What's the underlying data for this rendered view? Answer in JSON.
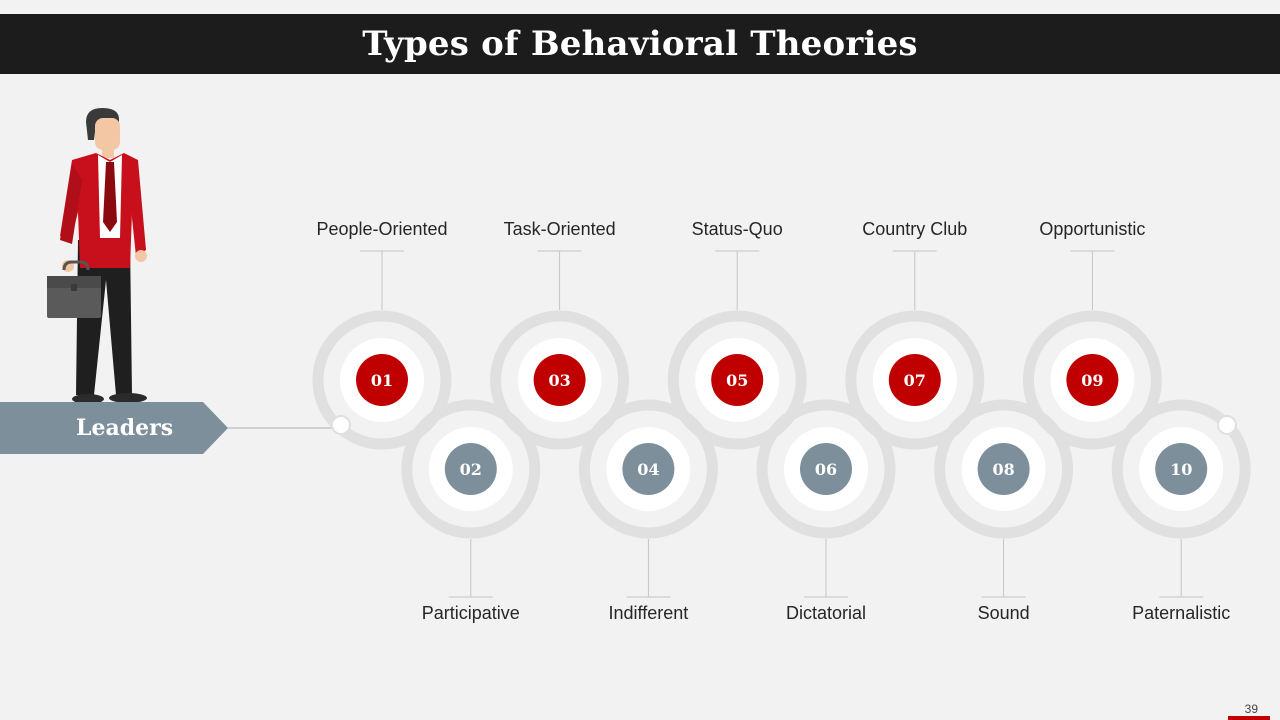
{
  "title": "Types of Behavioral Theories",
  "banner": "Leaders",
  "colors": {
    "title_bar": "#1c1c1c",
    "red": "#c00000",
    "slate": "#7d8f9b",
    "track": "#e0e0e0"
  },
  "steps": [
    {
      "num": "01",
      "label": "People-Oriented",
      "tone": "red"
    },
    {
      "num": "02",
      "label": "Participative",
      "tone": "slate"
    },
    {
      "num": "03",
      "label": "Task-Oriented",
      "tone": "red"
    },
    {
      "num": "04",
      "label": "Indifferent",
      "tone": "slate"
    },
    {
      "num": "05",
      "label": "Status-Quo",
      "tone": "red"
    },
    {
      "num": "06",
      "label": "Dictatorial",
      "tone": "slate"
    },
    {
      "num": "07",
      "label": "Country Club",
      "tone": "red"
    },
    {
      "num": "08",
      "label": "Sound",
      "tone": "slate"
    },
    {
      "num": "09",
      "label": "Opportunistic",
      "tone": "red"
    },
    {
      "num": "10",
      "label": "Paternalistic",
      "tone": "slate"
    }
  ],
  "page_number": "39",
  "figure": "businessman-figure"
}
